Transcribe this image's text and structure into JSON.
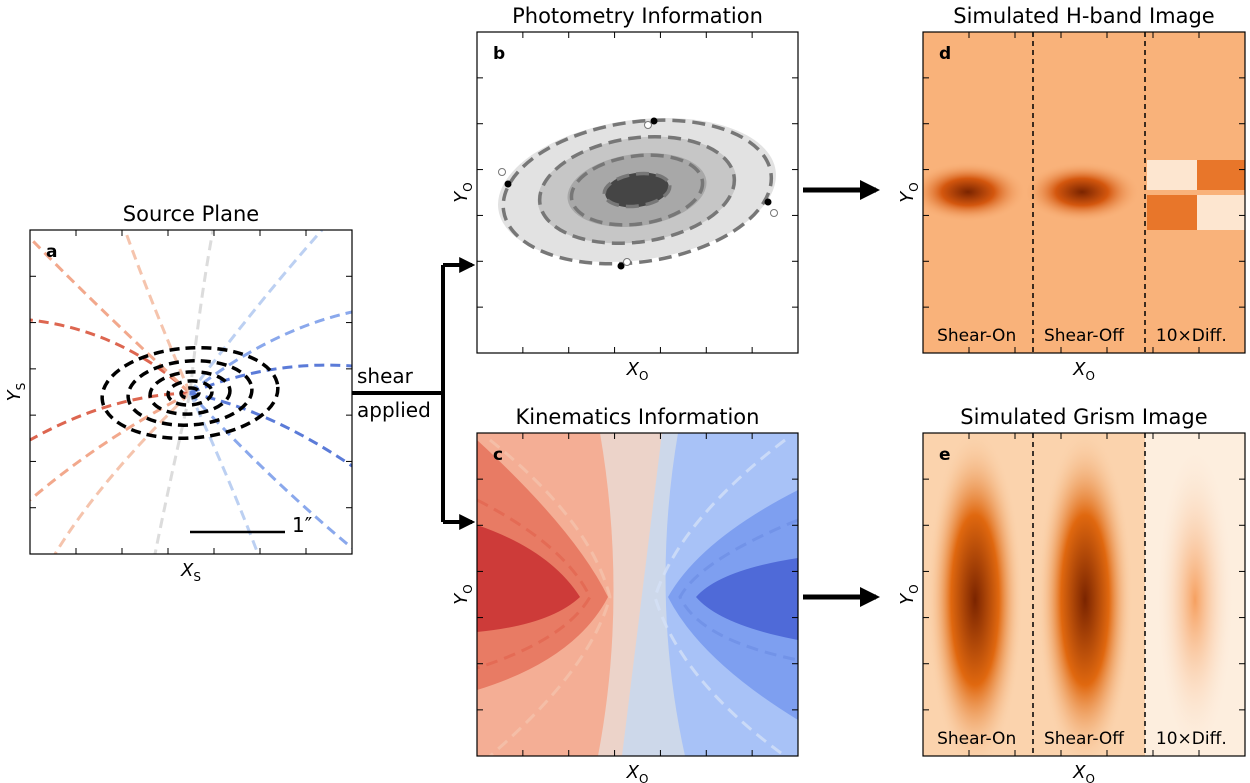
{
  "arrow_label": [
    "shear",
    "applied"
  ],
  "panels": [
    {
      "letter": "a",
      "title": "Source Plane",
      "x_label": {
        "base": "X",
        "sub": "S"
      },
      "y_label": {
        "base": "Y",
        "sub": "S"
      },
      "scale_bar": "1″"
    },
    {
      "letter": "b",
      "title": "Photometry Information",
      "x_label": {
        "base": "X",
        "sub": "O"
      },
      "y_label": {
        "base": "Y",
        "sub": "O"
      }
    },
    {
      "letter": "c",
      "title": "Kinematics Information",
      "x_label": {
        "base": "X",
        "sub": "O"
      },
      "y_label": {
        "base": "Y",
        "sub": "O"
      }
    },
    {
      "letter": "d",
      "title": "Simulated H-band Image",
      "x_label": {
        "base": "X",
        "sub": "O"
      },
      "y_label": {
        "base": "Y",
        "sub": "O"
      },
      "columns": [
        "Shear-On",
        "Shear-Off",
        "10×Diff."
      ]
    },
    {
      "letter": "e",
      "title": "Simulated Grism Image",
      "x_label": {
        "base": "X",
        "sub": "O"
      },
      "y_label": {
        "base": "Y",
        "sub": "O"
      },
      "columns": [
        "Shear-On",
        "Shear-Off",
        "10×Diff."
      ]
    }
  ]
}
